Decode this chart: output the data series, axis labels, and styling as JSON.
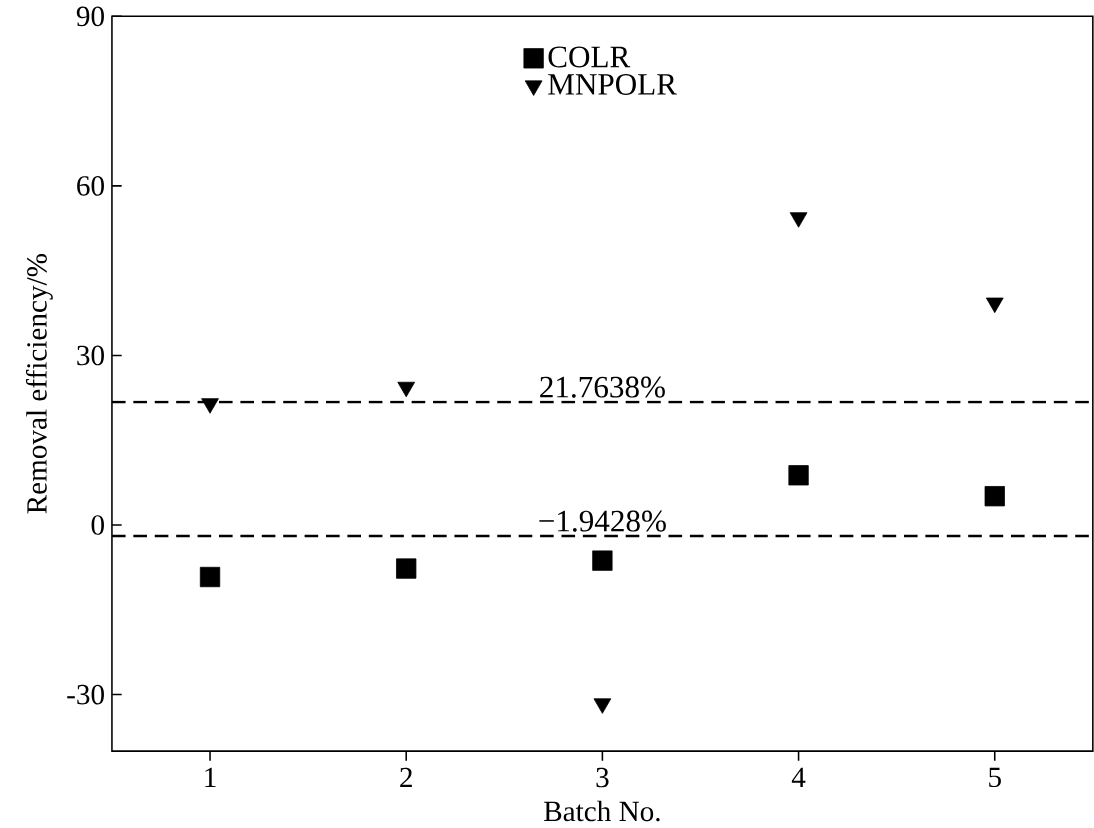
{
  "chart_data": {
    "type": "scatter",
    "xlabel": "Batch No.",
    "ylabel": "Removal efficiency/%",
    "x": [
      1,
      2,
      3,
      4,
      5
    ],
    "series": [
      {
        "name": "COLR",
        "color": "#000000",
        "marker": "square",
        "values": [
          -9.2,
          -7.7,
          -6.3,
          8.8,
          5.1
        ]
      },
      {
        "name": "MNPOLR",
        "color": "#000000",
        "marker": "triangle-down",
        "values": [
          21.5,
          24.4,
          -31.6,
          54.4,
          39.3
        ]
      }
    ],
    "xlim": [
      0.5,
      5.5
    ],
    "xticks": [
      1,
      2,
      3,
      4,
      5
    ],
    "ylim": [
      -40,
      90
    ],
    "yticks": [
      -30,
      0,
      30,
      60,
      90
    ],
    "ref_lines": [
      {
        "axis": "y",
        "value": 21.7638,
        "label": "21.7638%",
        "color": "#000000",
        "line_style": "dashed"
      },
      {
        "axis": "y",
        "value": -1.9428,
        "label": "−1.9428%",
        "color": "#000000",
        "line_style": "dashed"
      }
    ],
    "grid": false,
    "legend": "top"
  }
}
